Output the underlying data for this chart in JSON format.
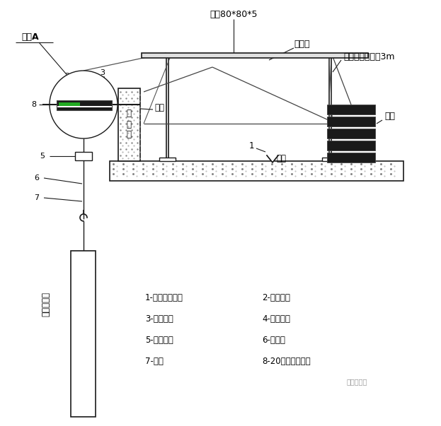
{
  "bg_color": "#ffffff",
  "line_color": "#1a1a1a",
  "title_top": "方钢80*80*5",
  "label_sijue": "钢丝绳",
  "label_juzhu": "吊栏间距不大于3m",
  "label_jiedian": "节点A",
  "label_hanjie": "焊接",
  "label_nuqiang": "女\n儿\n墙",
  "label_peichong": "配重",
  "label_wumian": "屋面",
  "label_curtain": "单元式幕墙",
  "legend_items": [
    "1-吊篮支架装置",
    "2-凹形钢板",
    "3-高强螺栓",
    "4-矩形钢板",
    "5-电动葫芦",
    "6-钢丝绳",
    "7-吊钩",
    "8-20号工字钢环形"
  ],
  "watermark": "逻辑丁施工"
}
